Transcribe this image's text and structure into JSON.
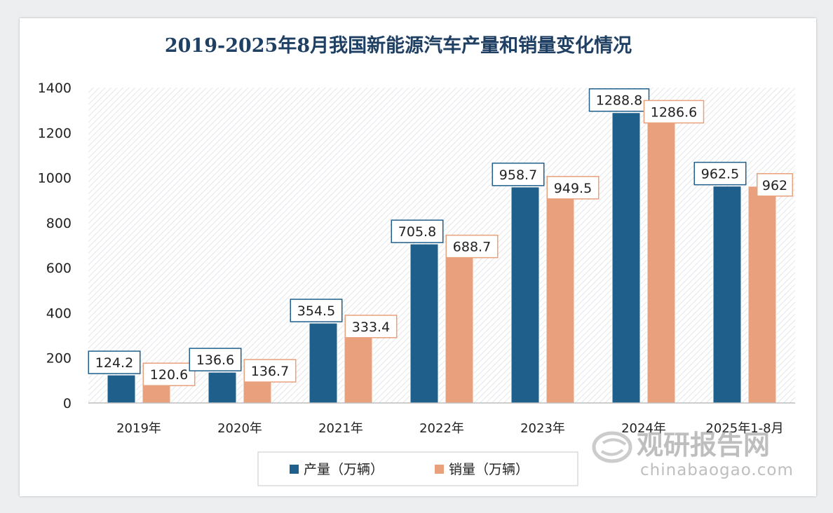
{
  "chart_data": {
    "type": "bar",
    "title": "2019-2025年8月我国新能源汽车产量和销量变化情况",
    "categories": [
      "2019年",
      "2020年",
      "2021年",
      "2022年",
      "2023年",
      "2024年",
      "2025年1-8月"
    ],
    "series": [
      {
        "name": "产量（万辆）",
        "values": [
          124.2,
          136.6,
          354.5,
          705.8,
          958.7,
          1288.8,
          962.5
        ],
        "color": "#1f5f8b",
        "labels": [
          "124.2",
          "136.6",
          "354.5",
          "705.8",
          "958.7",
          "1288.8",
          "962.5"
        ]
      },
      {
        "name": "销量（万辆）",
        "values": [
          120.6,
          136.7,
          333.4,
          688.7,
          949.5,
          1286.6,
          962
        ],
        "color": "#e9a07c",
        "labels": [
          "120.6",
          "136.7",
          "333.4",
          "688.7",
          "949.5",
          "1286.6",
          "962"
        ]
      }
    ],
    "ylim": [
      0,
      1400
    ],
    "yticks": [
      "0",
      "200",
      "400",
      "600",
      "800",
      "1000",
      "1200",
      "1400"
    ],
    "ytick_values": [
      0,
      200,
      400,
      600,
      800,
      1000,
      1200,
      1400
    ],
    "xlabel": "",
    "ylabel": "",
    "grid": false,
    "legend_position": "bottom"
  },
  "watermark": {
    "name": "观研报告网",
    "domain": "chinabaogao.com"
  }
}
